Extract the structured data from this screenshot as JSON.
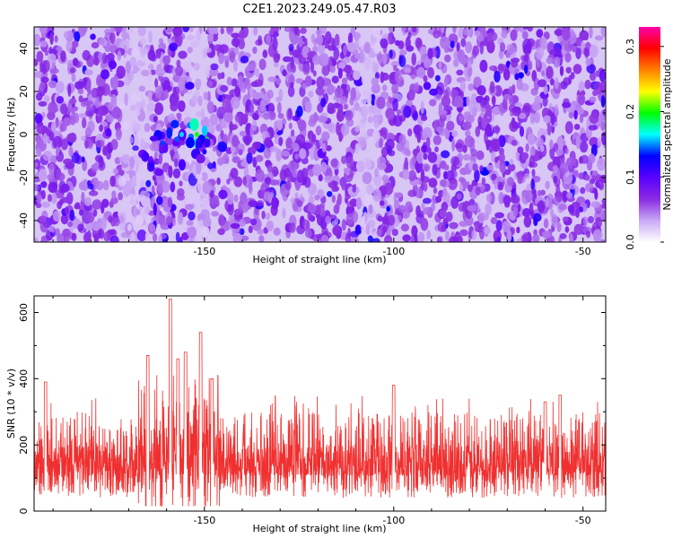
{
  "title": "C2E1.2023.249.05.47.R03",
  "colors": {
    "snr_line": "#f03030",
    "axis": "#000000"
  },
  "chart_data": [
    {
      "type": "heatmap",
      "xlabel": "Height of straight line (km)",
      "ylabel": "Frequency (Hz)",
      "xlim": [
        -195,
        -44
      ],
      "ylim": [
        -50,
        50
      ],
      "xticks": [
        -150,
        -100,
        -50
      ],
      "xtick_labels": [
        "-150",
        "-100",
        "-50"
      ],
      "yticks": [
        -40,
        -20,
        0,
        20,
        40
      ],
      "ytick_labels": [
        "-40",
        "-20",
        "0",
        "20",
        "40"
      ],
      "colorbar": {
        "label": "Normalized spectral amplitude",
        "range": [
          0.0,
          0.33
        ],
        "ticks": [
          0.0,
          0.1,
          0.2,
          0.3
        ],
        "tick_labels": [
          "0.0",
          "0.1",
          "0.2",
          "0.3"
        ],
        "colormap": [
          "#ffffff",
          "#c9a8f5",
          "#8a2be2",
          "#5a00ff",
          "#0000ff",
          "#00ffff",
          "#00ff00",
          "#ffff00",
          "#ff8000",
          "#ff0000",
          "#ff00aa"
        ]
      },
      "hotspots": [
        {
          "x": -161,
          "y": -4,
          "value": 0.14
        },
        {
          "x": -156,
          "y": 0,
          "value": 0.16
        },
        {
          "x": -152,
          "y": 0,
          "value": 0.2
        },
        {
          "x": -164,
          "y": -14,
          "value": 0.12
        },
        {
          "x": -150,
          "y": -8,
          "value": 0.12
        }
      ],
      "grid": false
    },
    {
      "type": "line",
      "xlabel": "Height of straight line (km)",
      "ylabel": "SNR (10 * v/v)",
      "xlim": [
        -195,
        -44
      ],
      "ylim": [
        0,
        650
      ],
      "xticks": [
        -150,
        -100,
        -50
      ],
      "xtick_labels": [
        "-150",
        "-100",
        "-50"
      ],
      "yticks": [
        0,
        200,
        400,
        600
      ],
      "ytick_labels": [
        "0",
        "200",
        "400",
        "600"
      ],
      "baseline_mean": 120,
      "peaks": [
        {
          "x": -192,
          "y": 390
        },
        {
          "x": -165,
          "y": 470
        },
        {
          "x": -159,
          "y": 640
        },
        {
          "x": -157,
          "y": 460
        },
        {
          "x": -155,
          "y": 480
        },
        {
          "x": -151,
          "y": 540
        },
        {
          "x": -148,
          "y": 400
        },
        {
          "x": -100,
          "y": 380
        },
        {
          "x": -60,
          "y": 330
        },
        {
          "x": -56,
          "y": 350
        }
      ],
      "grid": false
    }
  ]
}
